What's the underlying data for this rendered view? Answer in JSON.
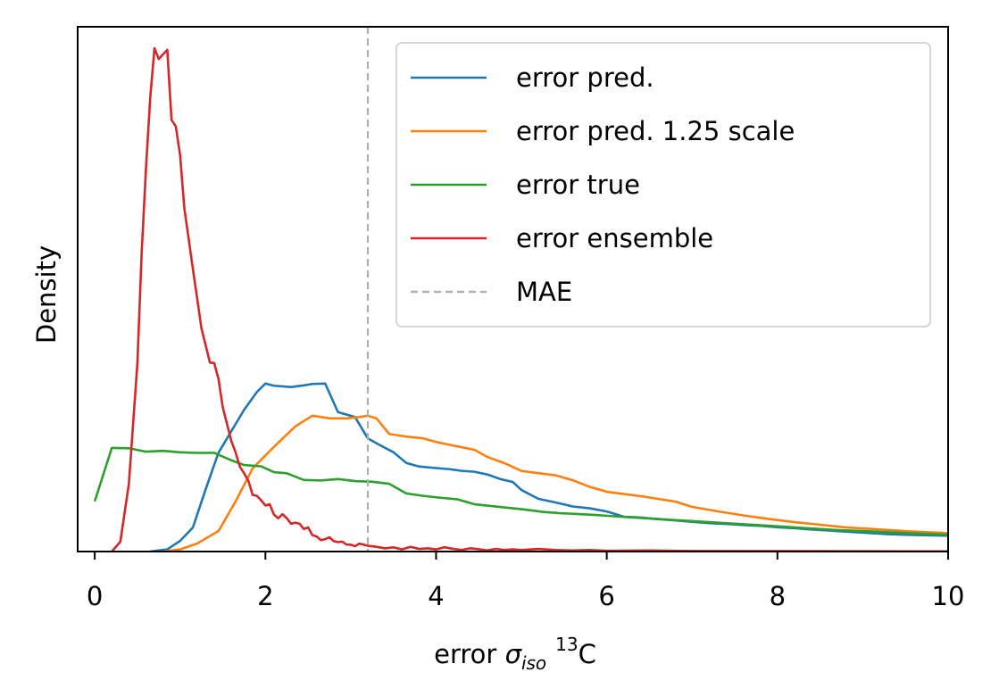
{
  "chart_data": {
    "type": "line",
    "title": "",
    "xlabel": {
      "prefix": "error ",
      "symbol": "σ",
      "subscript": "iso",
      "superscript": "13",
      "suffix": "C"
    },
    "ylabel": "Density",
    "xlim": [
      -0.2,
      10
    ],
    "ylim": [
      0,
      1.0
    ],
    "y_ticks_shown": false,
    "xticks": [
      0,
      2,
      4,
      6,
      8,
      10
    ],
    "xtick_labels": [
      "0",
      "2",
      "4",
      "6",
      "8",
      "10"
    ],
    "grid": false,
    "legend_position": "top-right",
    "series": [
      {
        "name": "error pred.",
        "color": "#1f77b4",
        "points": [
          [
            0.65,
            0.0
          ],
          [
            0.85,
            0.0041
          ],
          [
            1.0,
            0.0202
          ],
          [
            1.15,
            0.0457
          ],
          [
            1.3,
            0.1187
          ],
          [
            1.45,
            0.1883
          ],
          [
            1.6,
            0.2292
          ],
          [
            1.75,
            0.27
          ],
          [
            1.9,
            0.304
          ],
          [
            2.0,
            0.3201
          ],
          [
            2.1,
            0.3159
          ],
          [
            2.3,
            0.3134
          ],
          [
            2.45,
            0.3167
          ],
          [
            2.55,
            0.3193
          ],
          [
            2.7,
            0.3201
          ],
          [
            2.85,
            0.2657
          ],
          [
            3.05,
            0.2563
          ],
          [
            3.2,
            0.2156
          ],
          [
            3.35,
            0.202
          ],
          [
            3.5,
            0.1893
          ],
          [
            3.65,
            0.1689
          ],
          [
            3.8,
            0.1621
          ],
          [
            4.0,
            0.159
          ],
          [
            4.15,
            0.1571
          ],
          [
            4.3,
            0.1537
          ],
          [
            4.45,
            0.152
          ],
          [
            4.6,
            0.1469
          ],
          [
            4.75,
            0.1383
          ],
          [
            4.9,
            0.1324
          ],
          [
            5.0,
            0.1172
          ],
          [
            5.2,
            0.1003
          ],
          [
            5.4,
            0.0935
          ],
          [
            5.6,
            0.0859
          ],
          [
            5.8,
            0.0824
          ],
          [
            6.0,
            0.0763
          ],
          [
            6.2,
            0.0663
          ],
          [
            6.4,
            0.0648
          ],
          [
            6.6,
            0.0618
          ],
          [
            6.8,
            0.0594
          ],
          [
            7.0,
            0.0567
          ],
          [
            7.2,
            0.054
          ],
          [
            7.4,
            0.0526
          ],
          [
            7.6,
            0.0505
          ],
          [
            7.8,
            0.049
          ],
          [
            8.0,
            0.0462
          ],
          [
            8.2,
            0.0445
          ],
          [
            8.4,
            0.042
          ],
          [
            8.6,
            0.04
          ],
          [
            8.8,
            0.038
          ],
          [
            9.0,
            0.036
          ],
          [
            9.3,
            0.033
          ],
          [
            9.6,
            0.0315
          ],
          [
            10.0,
            0.03
          ]
        ]
      },
      {
        "name": "error pred. 1.25 scale",
        "color": "#ff7f0e",
        "points": [
          [
            0.8,
            0.0
          ],
          [
            1.0,
            0.0041
          ],
          [
            1.2,
            0.0153
          ],
          [
            1.45,
            0.0391
          ],
          [
            1.65,
            0.0953
          ],
          [
            1.85,
            0.1585
          ],
          [
            2.1,
            0.1996
          ],
          [
            2.35,
            0.2385
          ],
          [
            2.55,
            0.2588
          ],
          [
            2.75,
            0.2539
          ],
          [
            2.95,
            0.2537
          ],
          [
            3.1,
            0.2563
          ],
          [
            3.2,
            0.2588
          ],
          [
            3.3,
            0.2539
          ],
          [
            3.45,
            0.2241
          ],
          [
            3.65,
            0.219
          ],
          [
            3.85,
            0.2156
          ],
          [
            4.0,
            0.2088
          ],
          [
            4.2,
            0.202
          ],
          [
            4.45,
            0.1938
          ],
          [
            4.6,
            0.1803
          ],
          [
            4.8,
            0.1684
          ],
          [
            5.0,
            0.1535
          ],
          [
            5.2,
            0.1494
          ],
          [
            5.4,
            0.1452
          ],
          [
            5.6,
            0.136
          ],
          [
            5.8,
            0.1232
          ],
          [
            6.0,
            0.1139
          ],
          [
            6.2,
            0.1096
          ],
          [
            6.4,
            0.1054
          ],
          [
            6.6,
            0.1003
          ],
          [
            6.8,
            0.0952
          ],
          [
            7.0,
            0.085
          ],
          [
            7.3,
            0.0765
          ],
          [
            7.6,
            0.0689
          ],
          [
            7.9,
            0.062
          ],
          [
            8.2,
            0.056
          ],
          [
            8.5,
            0.051
          ],
          [
            8.8,
            0.046
          ],
          [
            9.2,
            0.042
          ],
          [
            9.6,
            0.038
          ],
          [
            10.0,
            0.035
          ]
        ]
      },
      {
        "name": "error true",
        "color": "#2ca02c",
        "points": [
          [
            0.0,
            0.0956
          ],
          [
            0.2,
            0.1975
          ],
          [
            0.4,
            0.1968
          ],
          [
            0.6,
            0.1903
          ],
          [
            0.8,
            0.1919
          ],
          [
            1.0,
            0.1891
          ],
          [
            1.2,
            0.1879
          ],
          [
            1.4,
            0.188
          ],
          [
            1.6,
            0.1739
          ],
          [
            1.75,
            0.1648
          ],
          [
            1.95,
            0.1624
          ],
          [
            2.1,
            0.1513
          ],
          [
            2.25,
            0.1491
          ],
          [
            2.45,
            0.1364
          ],
          [
            2.65,
            0.1354
          ],
          [
            2.85,
            0.1381
          ],
          [
            3.05,
            0.1342
          ],
          [
            3.25,
            0.133
          ],
          [
            3.45,
            0.1291
          ],
          [
            3.65,
            0.1108
          ],
          [
            3.85,
            0.1061
          ],
          [
            4.05,
            0.1025
          ],
          [
            4.25,
            0.0995
          ],
          [
            4.45,
            0.0901
          ],
          [
            4.65,
            0.0866
          ],
          [
            4.85,
            0.0833
          ],
          [
            5.05,
            0.0798
          ],
          [
            5.25,
            0.0756
          ],
          [
            5.45,
            0.0731
          ],
          [
            5.65,
            0.0716
          ],
          [
            5.85,
            0.0698
          ],
          [
            6.05,
            0.0676
          ],
          [
            6.3,
            0.065
          ],
          [
            6.6,
            0.062
          ],
          [
            6.9,
            0.059
          ],
          [
            7.2,
            0.056
          ],
          [
            7.5,
            0.053
          ],
          [
            7.8,
            0.05
          ],
          [
            8.1,
            0.047
          ],
          [
            8.4,
            0.044
          ],
          [
            8.7,
            0.041
          ],
          [
            9.0,
            0.039
          ],
          [
            9.4,
            0.036
          ],
          [
            10.0,
            0.032
          ]
        ]
      },
      {
        "name": "error ensemble",
        "color": "#d62728",
        "points": [
          [
            0.2,
            0.0
          ],
          [
            0.3,
            0.0187
          ],
          [
            0.4,
            0.1291
          ],
          [
            0.5,
            0.3592
          ],
          [
            0.55,
            0.5696
          ],
          [
            0.6,
            0.7289
          ],
          [
            0.65,
            0.8645
          ],
          [
            0.7,
            0.9591
          ],
          [
            0.75,
            0.9386
          ],
          [
            0.8,
            0.9475
          ],
          [
            0.85,
            0.956
          ],
          [
            0.9,
            0.8224
          ],
          [
            0.95,
            0.8101
          ],
          [
            1.0,
            0.7556
          ],
          [
            1.05,
            0.6539
          ],
          [
            1.1,
            0.5967
          ],
          [
            1.15,
            0.5384
          ],
          [
            1.2,
            0.4826
          ],
          [
            1.25,
            0.4256
          ],
          [
            1.3,
            0.393
          ],
          [
            1.35,
            0.36
          ],
          [
            1.4,
            0.3591
          ],
          [
            1.45,
            0.329
          ],
          [
            1.5,
            0.275
          ],
          [
            1.55,
            0.243
          ],
          [
            1.6,
            0.211
          ],
          [
            1.65,
            0.1891
          ],
          [
            1.7,
            0.1619
          ],
          [
            1.75,
            0.1491
          ],
          [
            1.8,
            0.1349
          ],
          [
            1.85,
            0.1081
          ],
          [
            1.9,
            0.1061
          ],
          [
            1.95,
            0.0975
          ],
          [
            2.0,
            0.0878
          ],
          [
            2.05,
            0.0901
          ],
          [
            2.1,
            0.0703
          ],
          [
            2.15,
            0.0634
          ],
          [
            2.2,
            0.0712
          ],
          [
            2.25,
            0.0634
          ],
          [
            2.3,
            0.0529
          ],
          [
            2.35,
            0.055
          ],
          [
            2.4,
            0.053
          ],
          [
            2.45,
            0.0429
          ],
          [
            2.5,
            0.046
          ],
          [
            2.55,
            0.0312
          ],
          [
            2.6,
            0.0287
          ],
          [
            2.65,
            0.0216
          ],
          [
            2.7,
            0.0236
          ],
          [
            2.75,
            0.0272
          ],
          [
            2.8,
            0.0198
          ],
          [
            2.85,
            0.018
          ],
          [
            2.9,
            0.0189
          ],
          [
            2.95,
            0.0133
          ],
          [
            3.0,
            0.013
          ],
          [
            3.05,
            0.0101
          ],
          [
            3.1,
            0.0151
          ],
          [
            3.2,
            0.011
          ],
          [
            3.3,
            0.009
          ],
          [
            3.4,
            0.0061
          ],
          [
            3.5,
            0.008
          ],
          [
            3.6,
            0.0041
          ],
          [
            3.7,
            0.009
          ],
          [
            3.8,
            0.005
          ],
          [
            3.9,
            0.0061
          ],
          [
            4.0,
            0.0041
          ],
          [
            4.1,
            0.0082
          ],
          [
            4.2,
            0.005
          ],
          [
            4.3,
            0.003
          ],
          [
            4.4,
            0.0061
          ],
          [
            4.5,
            0.0045
          ],
          [
            4.6,
            0.002
          ],
          [
            4.7,
            0.005
          ],
          [
            4.8,
            0.003
          ],
          [
            4.9,
            0.0041
          ],
          [
            5.0,
            0.003
          ],
          [
            5.2,
            0.005
          ],
          [
            5.4,
            0.003
          ],
          [
            5.6,
            0.002
          ],
          [
            5.8,
            0.003
          ],
          [
            6.0,
            0.0015
          ],
          [
            6.5,
            0.002
          ],
          [
            7.0,
            0.001
          ],
          [
            8.0,
            0.0008
          ],
          [
            9.0,
            0.0005
          ],
          [
            10.0,
            0.0003
          ]
        ]
      }
    ],
    "reference_lines": [
      {
        "name": "MAE",
        "x": 3.2,
        "color": "#b0b0b0",
        "style": "dashed"
      }
    ]
  }
}
